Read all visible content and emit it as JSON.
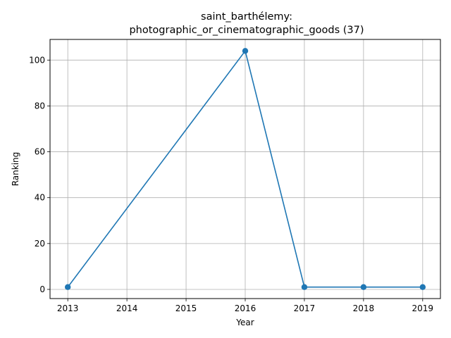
{
  "chart_data": {
    "type": "line",
    "title_line1": "saint_barthélemy:",
    "title_line2": "photographic_or_cinematographic_goods (37)",
    "xlabel": "Year",
    "ylabel": "Ranking",
    "xlim": [
      2012.7,
      2019.3
    ],
    "ylim": [
      -4,
      109
    ],
    "xticks": [
      2013,
      2014,
      2015,
      2016,
      2017,
      2018,
      2019
    ],
    "yticks": [
      0,
      20,
      40,
      60,
      80,
      100
    ],
    "grid": true,
    "series": [
      {
        "x": [
          2013,
          2016,
          2017,
          2018,
          2019
        ],
        "y": [
          1,
          104,
          1,
          1,
          1
        ],
        "color": "#1f77b4",
        "marker": "circle"
      }
    ]
  }
}
